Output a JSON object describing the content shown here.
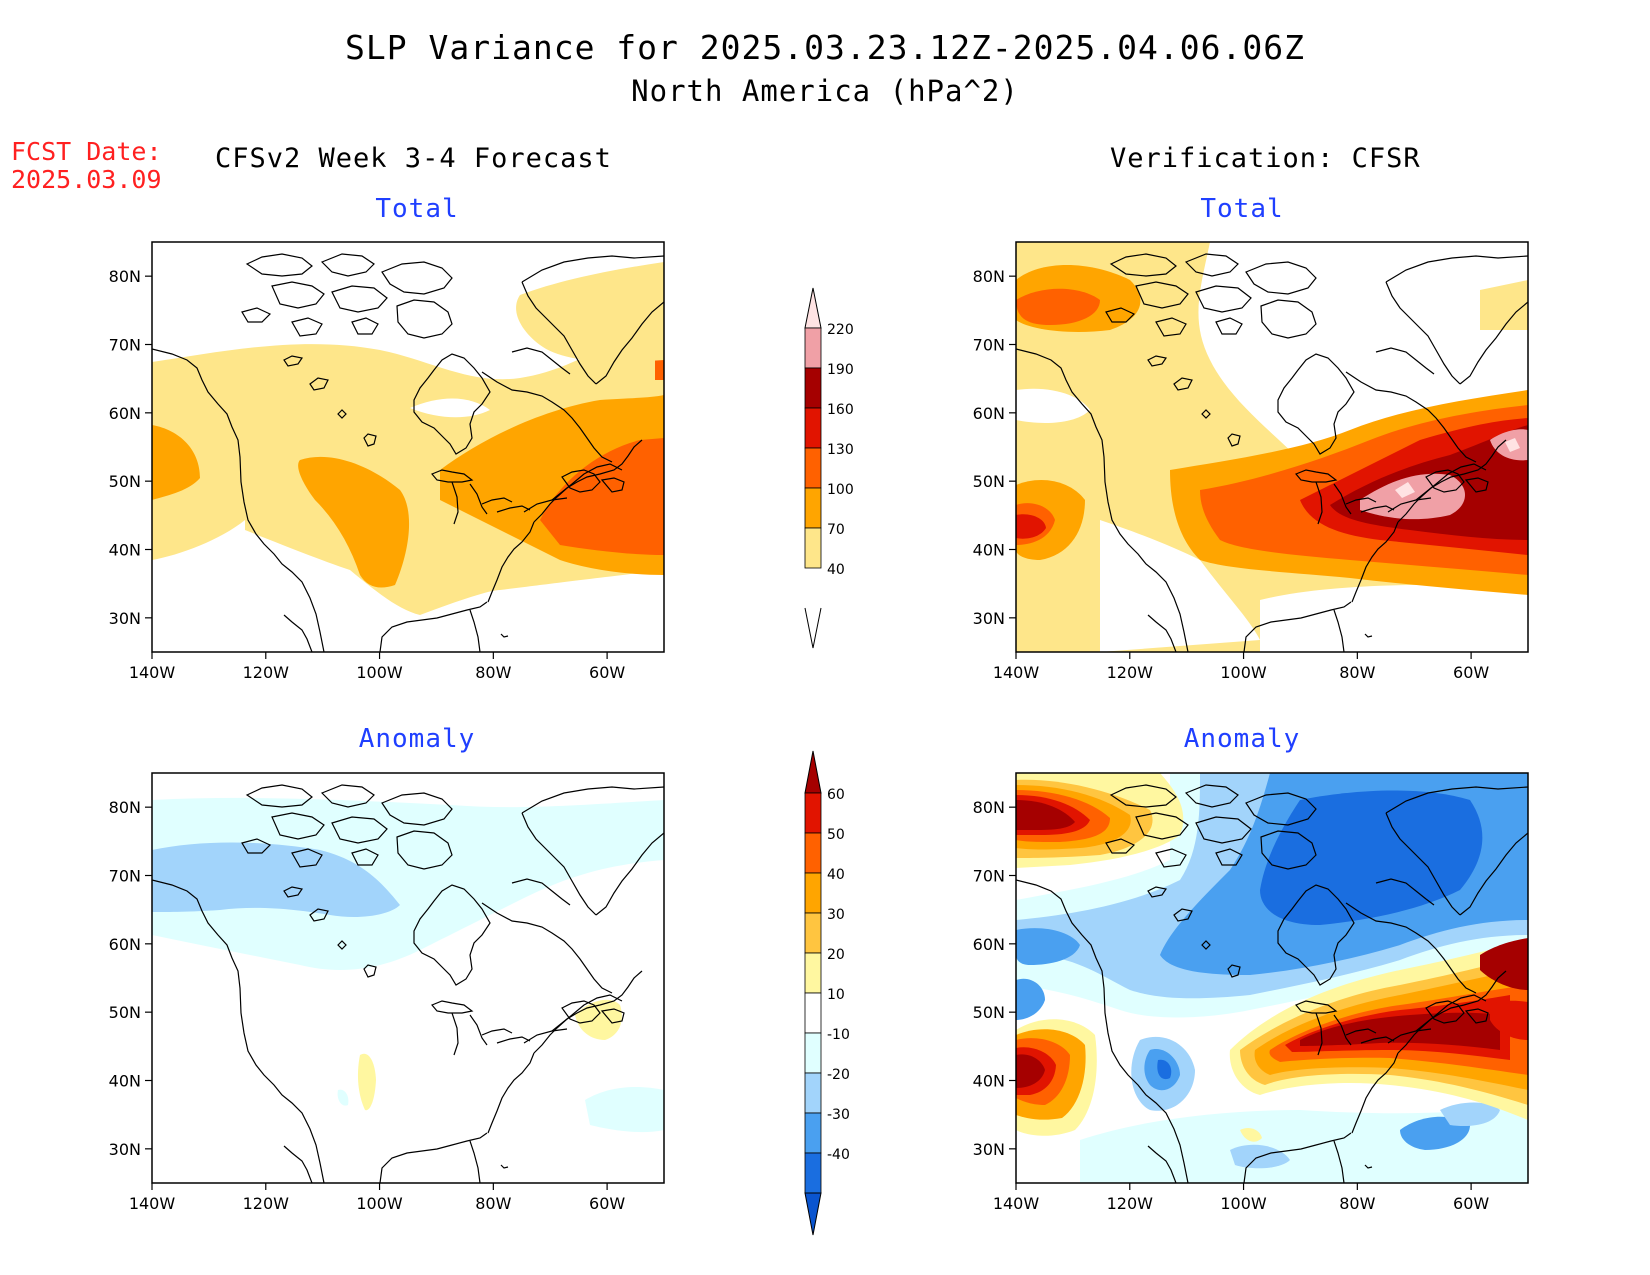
{
  "header": {
    "title": "SLP Variance for 2025.03.23.12Z-2025.04.06.06Z",
    "subtitle": "North America (hPa^2)"
  },
  "fcst": {
    "label": "FCST Date:",
    "date": "2025.03.09"
  },
  "columns": {
    "left": "CFSv2 Week 3-4 Forecast",
    "right": "Verification: CFSR"
  },
  "panels": {
    "total_label": "Total",
    "anomaly_label": "Anomaly"
  },
  "axes": {
    "lat_ticks": [
      "80N",
      "70N",
      "60N",
      "50N",
      "40N",
      "30N"
    ],
    "lon_ticks": [
      "140W",
      "120W",
      "100W",
      "80W",
      "60W"
    ]
  },
  "colorbars": {
    "total": {
      "levels": [
        "40",
        "70",
        "100",
        "130",
        "160",
        "190",
        "220"
      ],
      "colors": [
        "#fee68a",
        "#ffa500",
        "#ff6100",
        "#e11400",
        "#a50000",
        "#f0a0a6",
        "#ffe3e3"
      ]
    },
    "anomaly": {
      "levels": [
        "60",
        "50",
        "40",
        "30",
        "20",
        "10",
        "-10",
        "-20",
        "-30",
        "-40"
      ],
      "colors": [
        "#a50000",
        "#e11400",
        "#ff6100",
        "#ffa500",
        "#ffc540",
        "#fff7a0",
        "#ffffff",
        "#e0ffff",
        "#a2d4fb",
        "#4aa0f0",
        "#1a6ee0",
        "#0a55d0"
      ]
    }
  },
  "chart_data": {
    "type": "heatmap",
    "xlim": [
      "140W",
      "50W"
    ],
    "ylim": [
      "25N",
      "85N"
    ],
    "note_units": "hPa^2"
  }
}
